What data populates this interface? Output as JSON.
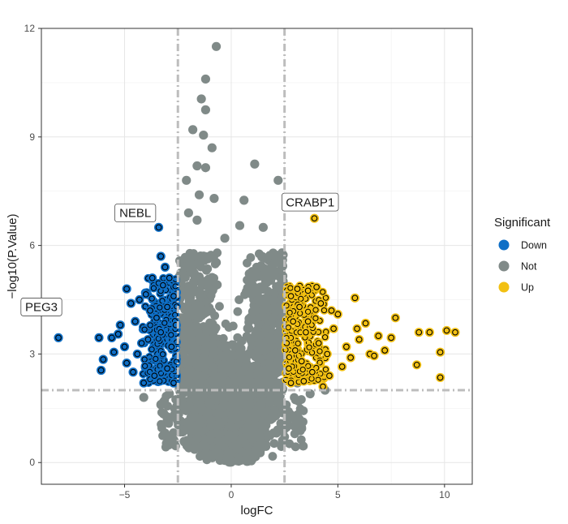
{
  "chart_data": {
    "type": "scatter",
    "title": "",
    "xlabel": "logFC",
    "ylabel": "−log10(P.Value)",
    "xlim": [
      -8.9,
      11.3
    ],
    "ylim": [
      -0.6,
      12
    ],
    "x_ticks": [
      -5,
      0,
      5,
      10
    ],
    "x_tick_labels": [
      "−5",
      "0",
      "5",
      "10"
    ],
    "y_ticks": [
      0,
      3,
      6,
      9,
      12
    ],
    "y_tick_labels": [
      "0",
      "3",
      "6",
      "9",
      "12"
    ],
    "grid": true,
    "thresholds": {
      "logFC": [
        -2.5,
        2.5
      ],
      "neg_log10_p": 2
    },
    "legend": {
      "title": "Significant",
      "position": "right",
      "entries": [
        {
          "name": "Down",
          "color": "#0f6fc6"
        },
        {
          "name": "Not",
          "color": "#808a88"
        },
        {
          "name": "Up",
          "color": "#f2c012"
        }
      ]
    },
    "series": [
      {
        "name": "Down",
        "color": "#0f6fc6",
        "points": [
          [
            -8.1,
            3.45
          ],
          [
            -6.2,
            3.45
          ],
          [
            -6.0,
            2.85
          ],
          [
            -6.1,
            2.55
          ],
          [
            -5.6,
            3.45
          ],
          [
            -5.5,
            3.05
          ],
          [
            -5.3,
            3.55
          ],
          [
            -5.0,
            3.2
          ],
          [
            -4.9,
            4.8
          ],
          [
            -4.7,
            4.4
          ],
          [
            -4.9,
            2.75
          ],
          [
            -4.5,
            3.9
          ],
          [
            -4.6,
            2.5
          ],
          [
            -4.4,
            3.0
          ],
          [
            -4.3,
            4.5
          ],
          [
            -4.0,
            4.65
          ],
          [
            -3.9,
            3.4
          ],
          [
            -3.8,
            4.2
          ],
          [
            -3.7,
            5.1
          ],
          [
            -3.5,
            4.0
          ],
          [
            -3.4,
            6.5
          ],
          [
            -3.3,
            5.7
          ],
          [
            -3.3,
            3.6
          ],
          [
            -3.2,
            4.9
          ],
          [
            -3.1,
            5.4
          ],
          [
            -3.0,
            4.3
          ],
          [
            -2.9,
            5.1
          ],
          [
            -2.8,
            3.2
          ],
          [
            -2.7,
            4.6
          ],
          [
            -2.6,
            3.8
          ],
          [
            -3.6,
            2.4
          ],
          [
            -4.2,
            3.3
          ],
          [
            -5.2,
            3.8
          ],
          [
            -4.1,
            2.2
          ],
          [
            -3.0,
            2.6
          ],
          [
            -2.7,
            2.2
          ]
        ]
      },
      {
        "name": "Not",
        "color": "#808a88",
        "points": [
          [
            -0.7,
            11.5
          ],
          [
            -1.2,
            10.6
          ],
          [
            -1.4,
            10.05
          ],
          [
            -1.2,
            9.75
          ],
          [
            -1.8,
            9.2
          ],
          [
            -1.3,
            9.05
          ],
          [
            -0.9,
            8.7
          ],
          [
            -1.6,
            8.2
          ],
          [
            -1.2,
            8.15
          ],
          [
            1.1,
            8.25
          ],
          [
            -2.1,
            7.8
          ],
          [
            2.2,
            7.8
          ],
          [
            -1.5,
            7.4
          ],
          [
            -0.8,
            7.3
          ],
          [
            0.6,
            7.25
          ],
          [
            -2.0,
            6.9
          ],
          [
            -1.6,
            6.7
          ],
          [
            0.4,
            6.55
          ],
          [
            1.5,
            6.5
          ],
          [
            -0.3,
            6.2
          ],
          [
            3.7,
            1.9
          ],
          [
            4.4,
            2.0
          ],
          [
            3.1,
            2.2
          ],
          [
            -2.9,
            1.9
          ],
          [
            -3.3,
            1.6
          ],
          [
            -4.1,
            1.8
          ]
        ]
      },
      {
        "name": "Up",
        "color": "#f2c012",
        "points": [
          [
            3.9,
            6.75
          ],
          [
            2.8,
            4.6
          ],
          [
            3.1,
            4.8
          ],
          [
            3.6,
            4.75
          ],
          [
            4.0,
            4.85
          ],
          [
            4.2,
            4.4
          ],
          [
            5.0,
            4.1
          ],
          [
            5.8,
            4.55
          ],
          [
            6.3,
            3.85
          ],
          [
            6.9,
            3.5
          ],
          [
            7.5,
            3.45
          ],
          [
            7.7,
            4.0
          ],
          [
            8.7,
            2.7
          ],
          [
            8.8,
            3.6
          ],
          [
            9.3,
            3.6
          ],
          [
            9.8,
            3.05
          ],
          [
            9.8,
            2.35
          ],
          [
            10.1,
            3.65
          ],
          [
            10.5,
            3.6
          ],
          [
            6.5,
            3.0
          ],
          [
            5.6,
            2.9
          ],
          [
            5.2,
            2.65
          ],
          [
            4.6,
            2.4
          ],
          [
            4.3,
            2.1
          ],
          [
            3.4,
            2.25
          ],
          [
            2.7,
            2.6
          ],
          [
            3.0,
            3.1
          ],
          [
            3.5,
            3.6
          ],
          [
            4.1,
            3.3
          ],
          [
            4.8,
            3.7
          ],
          [
            5.4,
            3.2
          ],
          [
            6.0,
            3.4
          ],
          [
            2.9,
            3.9
          ],
          [
            3.3,
            2.8
          ],
          [
            3.8,
            2.5
          ],
          [
            4.5,
            3.0
          ],
          [
            2.6,
            3.3
          ],
          [
            3.2,
            4.3
          ],
          [
            4.7,
            4.2
          ],
          [
            5.9,
            3.7
          ],
          [
            7.2,
            3.1
          ],
          [
            6.7,
            2.95
          ],
          [
            3.6,
            3.9
          ],
          [
            2.8,
            2.2
          ]
        ]
      }
    ],
    "annotations": [
      {
        "text": "PEG3",
        "x": -8.1,
        "y": 3.45
      },
      {
        "text": "NEBL",
        "x": -3.4,
        "y": 6.5
      },
      {
        "text": "CRABP1",
        "x": 3.9,
        "y": 6.75
      }
    ]
  }
}
